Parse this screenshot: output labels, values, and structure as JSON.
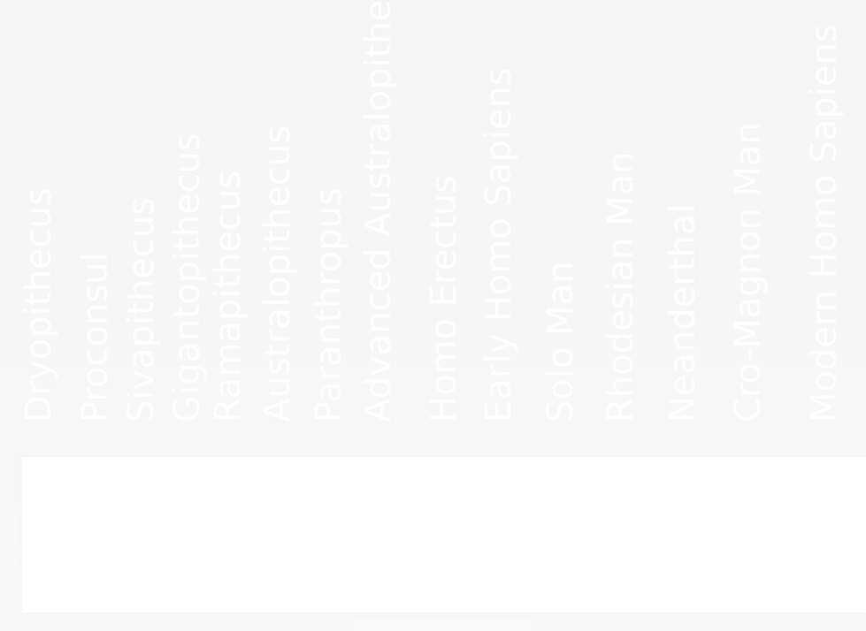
{
  "labels": [
    "Dryopithecus",
    "Proconsul",
    "Sivapithecus",
    "Gigantopithecus",
    "Ramapithecus",
    "Australopithecus",
    "Paranthropus",
    "Advanced Australopithecus",
    "Homo Erectus",
    "Early Homo Sapiens",
    "Solo Man",
    "Rhodesian Man",
    "Neanderthal",
    "Cro-Magnon Man",
    "Modern Homo Sapiens"
  ],
  "colors": {
    "background": "#f7f7f7",
    "text": "#ffffff",
    "panel": "#ffffff"
  }
}
